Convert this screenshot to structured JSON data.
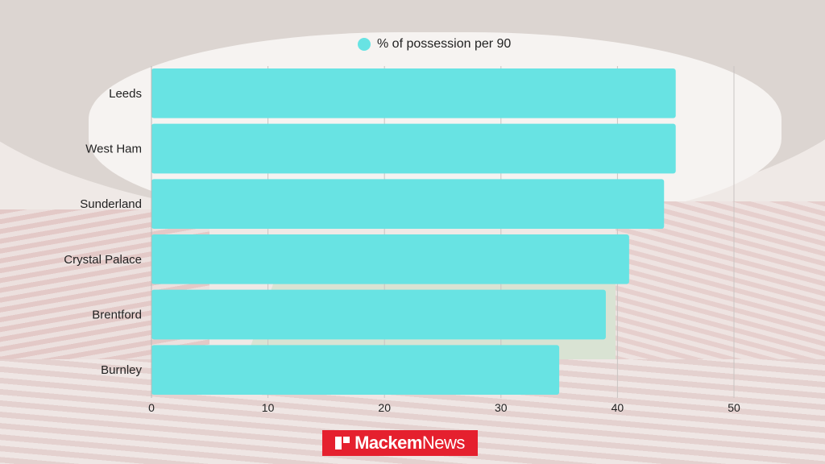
{
  "chart_data": {
    "type": "bar",
    "orientation": "horizontal",
    "categories": [
      "Leeds",
      "West Ham",
      "Sunderland",
      "Crystal Palace",
      "Brentford",
      "Burnley"
    ],
    "series": [
      {
        "name": "% of possession per 90",
        "values": [
          45,
          45,
          44,
          41,
          39,
          35
        ],
        "color": "#68e3e3"
      }
    ],
    "xlim": [
      0,
      50
    ],
    "xticks": [
      "0",
      "10",
      "20",
      "30",
      "40",
      "50"
    ],
    "grid": true,
    "legend_position": "top-center"
  },
  "logo": {
    "bold": "Mackem",
    "light": "News",
    "color": "#e5202e"
  }
}
